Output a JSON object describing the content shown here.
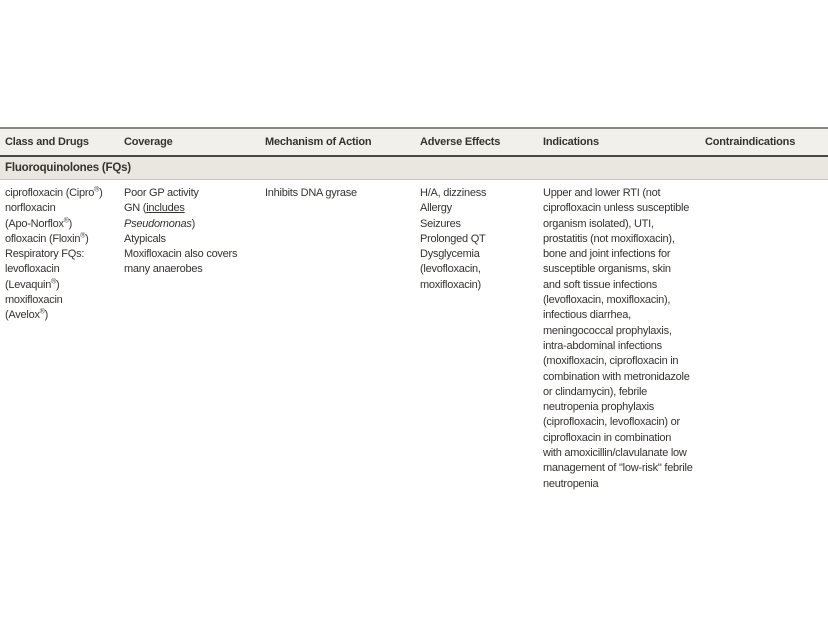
{
  "theme": {
    "text_color": "#35332f",
    "header_bg": "#f2f0ea",
    "section_bg": "#eae7e1",
    "border_top": "#8a8781",
    "border_dark": "#4a4844",
    "border_light": "#c9c5be"
  },
  "table": {
    "columns": [
      {
        "label": "Class and Drugs"
      },
      {
        "label": "Coverage"
      },
      {
        "label": "Mechanism of Action"
      },
      {
        "label": "Adverse Effects"
      },
      {
        "label": "Indications"
      },
      {
        "label": "Contraindications"
      }
    ],
    "section_header": "Fluoroquinolones (FQs)",
    "row": {
      "class_and_drugs": [
        [
          {
            "t": "ciprofloxacin (Cipro"
          },
          {
            "t": "®",
            "s": "sup"
          },
          {
            "t": ")"
          }
        ],
        "norfloxacin",
        [
          {
            "t": "(Apo-Norflox"
          },
          {
            "t": "®",
            "s": "sup"
          },
          {
            "t": ")"
          }
        ],
        [
          {
            "t": "ofloxacin (Floxin"
          },
          {
            "t": "®",
            "s": "sup"
          },
          {
            "t": ")"
          }
        ],
        "Respiratory FQs:",
        "levofloxacin",
        [
          {
            "t": "(Levaquin"
          },
          {
            "t": "®",
            "s": "sup"
          },
          {
            "t": ")"
          }
        ],
        "moxifloxacin",
        [
          {
            "t": "(Avelox"
          },
          {
            "t": "®",
            "s": "sup"
          },
          {
            "t": ")"
          }
        ]
      ],
      "coverage": [
        "Poor GP activity",
        [
          {
            "t": "GN ("
          },
          {
            "t": "includes",
            "s": "u"
          }
        ],
        [
          {
            "t": "Pseudomonas",
            "s": "i"
          },
          {
            "t": ")"
          }
        ],
        "Atypicals",
        "Moxifloxacin also covers",
        "many anaerobes"
      ],
      "mechanism_of_action": [
        "Inhibits DNA gyrase"
      ],
      "adverse_effects": [
        "H/A, dizziness",
        "Allergy",
        "Seizures",
        "Prolonged QT",
        "Dysglycemia",
        "(levofloxacin,",
        "moxifloxacin)"
      ],
      "indications": [
        "Upper and lower RTI (not",
        "ciprofloxacin unless susceptible",
        "organism isolated), UTI,",
        "prostatitis (not moxifloxacin),",
        "bone and joint infections for",
        "susceptible organisms, skin",
        "and soft tissue infections",
        "(levofloxacin, moxifloxacin),",
        "infectious diarrhea,",
        "meningococcal prophylaxis,",
        "intra-abdominal infections",
        "(moxifloxacin, ciprofloxacin in",
        "combination with metronidazole",
        "or clindamycin), febrile",
        "neutropenia prophylaxis",
        "(ciprofloxacin, levofloxacin) or",
        "ciprofloxacin in combination",
        "with amoxicillin/clavulanate low",
        "management of \"low-risk\" febrile",
        "neutropenia"
      ],
      "contraindications": []
    }
  }
}
